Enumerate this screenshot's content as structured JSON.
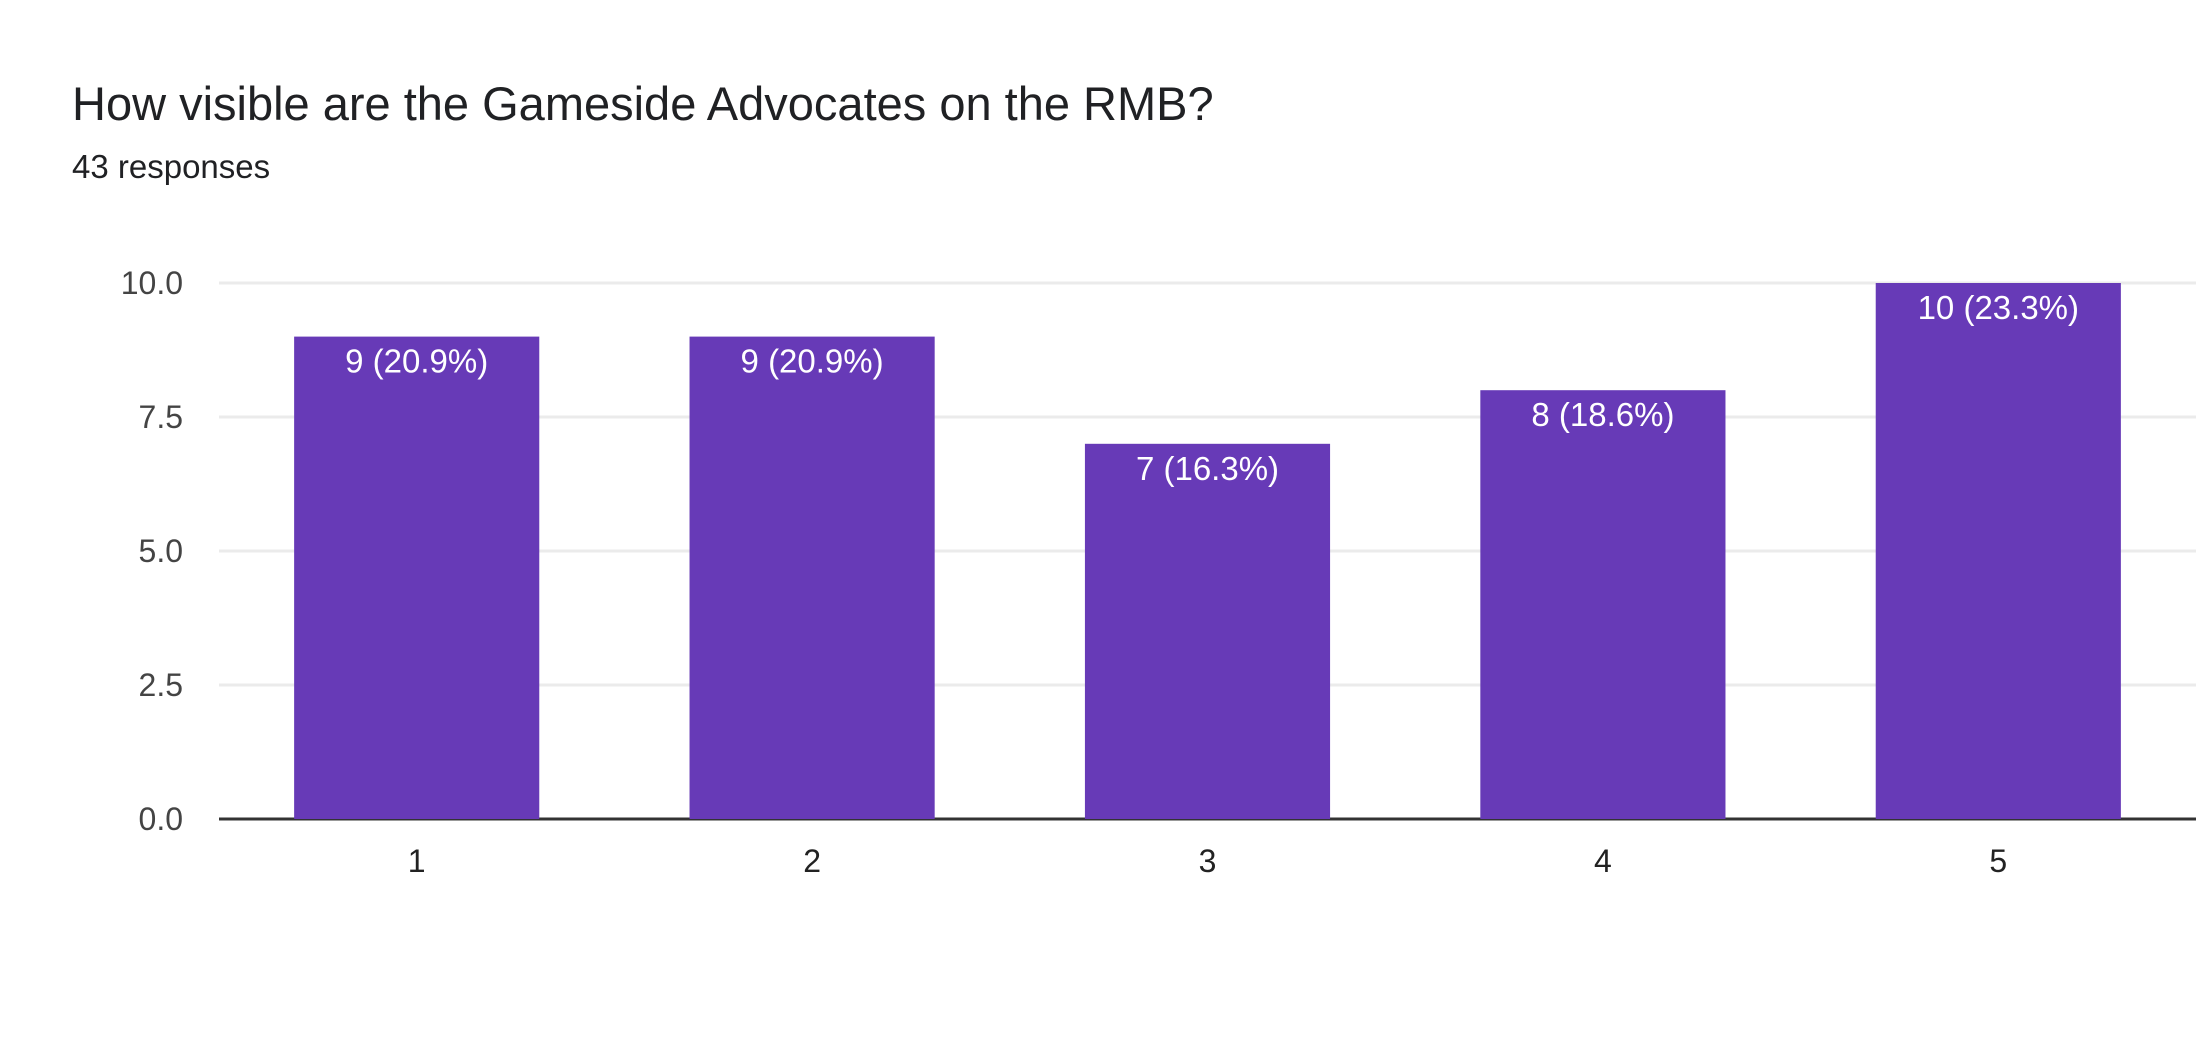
{
  "header": {
    "title": "How visible are the Gameside Advocates on the RMB?",
    "responses": "43 responses"
  },
  "chart_data": {
    "type": "bar",
    "categories": [
      "1",
      "2",
      "3",
      "4",
      "5"
    ],
    "values": [
      9,
      9,
      7,
      8,
      10
    ],
    "data_labels": [
      "9 (20.9%)",
      "9 (20.9%)",
      "7 (16.3%)",
      "8 (18.6%)",
      "10 (23.3%)"
    ],
    "yticks": [
      "0.0",
      "2.5",
      "5.0",
      "7.5",
      "10.0"
    ],
    "ylim": [
      0,
      10
    ],
    "grid": true,
    "legend": "none",
    "bar_color": "#673ab7",
    "grid_color": "#ebebeb",
    "baseline_color": "#333333"
  }
}
